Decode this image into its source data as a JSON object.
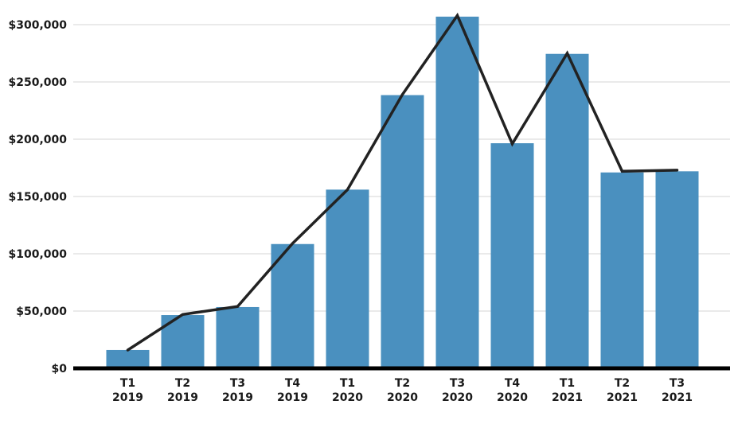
{
  "chart_data": {
    "type": "bar",
    "categories": [
      [
        "T1",
        "2019"
      ],
      [
        "T2",
        "2019"
      ],
      [
        "T3",
        "2019"
      ],
      [
        "T4",
        "2019"
      ],
      [
        "T1",
        "2020"
      ],
      [
        "T2",
        "2020"
      ],
      [
        "T3",
        "2020"
      ],
      [
        "T4",
        "2020"
      ],
      [
        "T1",
        "2021"
      ],
      [
        "T2",
        "2021"
      ],
      [
        "T3",
        "2021"
      ]
    ],
    "series": [
      {
        "type": "bar",
        "values": [
          16000,
          46500,
          53500,
          108500,
          156000,
          238500,
          307000,
          196500,
          274500,
          171000,
          172000
        ]
      },
      {
        "type": "line",
        "values": [
          16000,
          47000,
          54000,
          109000,
          156000,
          239000,
          308000,
          196000,
          275000,
          172000,
          173000
        ]
      }
    ],
    "ylim": [
      0,
      300000
    ],
    "yticks": [
      0,
      50000,
      100000,
      150000,
      200000,
      250000,
      300000
    ],
    "ytick_labels": [
      "$0",
      "$50,000",
      "$100,000",
      "$150,000",
      "$200,000",
      "$250,000",
      "$300,000"
    ],
    "grid": true,
    "colors": {
      "bar": "#4a90bf",
      "line": "#222222",
      "baseline": "#000000",
      "grid": "#d4d4d4"
    }
  }
}
